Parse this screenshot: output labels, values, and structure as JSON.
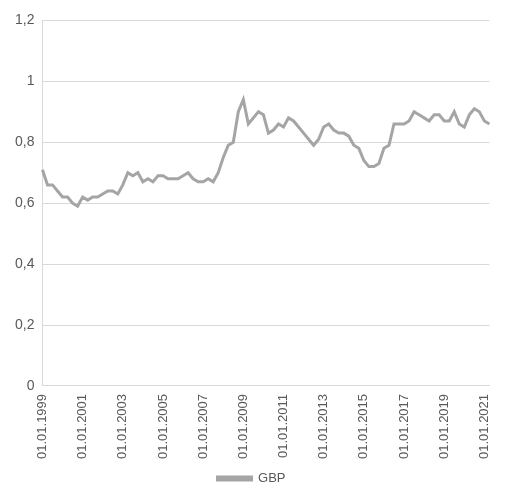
{
  "chart_data": {
    "type": "line",
    "categories": [
      "01.01.1999",
      null,
      null,
      null,
      null,
      null,
      null,
      null,
      "01.01.2001",
      null,
      null,
      null,
      null,
      null,
      null,
      null,
      "01.01.2003",
      null,
      null,
      null,
      null,
      null,
      null,
      null,
      "01.01.2005",
      null,
      null,
      null,
      null,
      null,
      null,
      null,
      "01.01.2007",
      null,
      null,
      null,
      null,
      null,
      null,
      null,
      "01.01.2009",
      null,
      null,
      null,
      null,
      null,
      null,
      null,
      "01.01.2011",
      null,
      null,
      null,
      null,
      null,
      null,
      null,
      "01.01.2013",
      null,
      null,
      null,
      null,
      null,
      null,
      null,
      "01.01.2015",
      null,
      null,
      null,
      null,
      null,
      null,
      null,
      "01.01.2017",
      null,
      null,
      null,
      null,
      null,
      null,
      null,
      "01.01.2019",
      null,
      null,
      null,
      null,
      null,
      null,
      null,
      "01.01.2021",
      null
    ],
    "series": [
      {
        "name": "GBP",
        "color": "#a5a5a5",
        "values": [
          0.71,
          0.66,
          0.66,
          0.64,
          0.62,
          0.62,
          0.6,
          0.59,
          0.62,
          0.61,
          0.62,
          0.62,
          0.63,
          0.64,
          0.64,
          0.63,
          0.66,
          0.7,
          0.69,
          0.7,
          0.67,
          0.68,
          0.67,
          0.69,
          0.69,
          0.68,
          0.68,
          0.68,
          0.69,
          0.7,
          0.68,
          0.67,
          0.67,
          0.68,
          0.67,
          0.7,
          0.75,
          0.79,
          0.8,
          0.9,
          0.94,
          0.86,
          0.88,
          0.9,
          0.89,
          0.83,
          0.84,
          0.86,
          0.85,
          0.88,
          0.87,
          0.85,
          0.83,
          0.81,
          0.79,
          0.81,
          0.85,
          0.86,
          0.84,
          0.83,
          0.83,
          0.82,
          0.79,
          0.78,
          0.74,
          0.72,
          0.72,
          0.73,
          0.78,
          0.79,
          0.86,
          0.86,
          0.86,
          0.87,
          0.9,
          0.89,
          0.88,
          0.87,
          0.89,
          0.89,
          0.87,
          0.87,
          0.9,
          0.86,
          0.85,
          0.89,
          0.91,
          0.9,
          0.87,
          0.86
        ]
      }
    ],
    "ylim": [
      0,
      1.2
    ],
    "yticks": [
      0,
      {
        "value": 0.2,
        "label": "0,2"
      },
      {
        "value": 0.4,
        "label": "0,4"
      },
      {
        "value": 0.6,
        "label": "0,6"
      },
      {
        "value": 0.8,
        "label": "0,8"
      },
      1,
      {
        "value": 1.2,
        "label": "1,2"
      }
    ],
    "grid": true,
    "legend": "bottom"
  }
}
